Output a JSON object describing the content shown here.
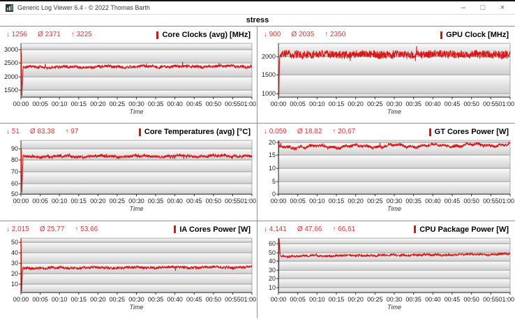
{
  "window": {
    "title": "Generic Log Viewer 6.4 - © 2022 Thomas Barth",
    "controls": {
      "minimize": "–",
      "maximize": "□",
      "close": "×"
    }
  },
  "page_title": "stress",
  "symbols": {
    "min": "↓",
    "avg": "Ø",
    "max": "↑"
  },
  "colors": {
    "line_red": "#dc1414",
    "stats_red": "#e03535",
    "grid_line": "#9b9b9b",
    "axis_line": "#2f2f2f",
    "plot_frame": "#ababab",
    "band_top": "#fbfbfb",
    "band_bottom": "#cfcfcf",
    "panel_divider": "#8f8f8f"
  },
  "time_axis": {
    "label": "Time",
    "ticks": [
      "00:00",
      "00:05",
      "00:10",
      "00:15",
      "00:20",
      "00:25",
      "00:30",
      "00:35",
      "00:40",
      "00:45",
      "00:50",
      "00:55",
      "01:00"
    ]
  },
  "chart_data": [
    {
      "type": "line",
      "title": "Core Clocks (avg) [MHz]",
      "stats": {
        "min": "1256",
        "avg": "2371",
        "max": "3225"
      },
      "y_ticks": [
        1500,
        2000,
        2500,
        3000
      ],
      "y_range": [
        1256,
        3225
      ],
      "x_range_minutes": [
        0,
        60
      ],
      "xlabel": "Time",
      "series": {
        "name": "Core Clocks (avg)",
        "intro_points": [
          [
            0,
            2400
          ],
          [
            0.0015,
            3225
          ],
          [
            0.004,
            1256
          ],
          [
            0.009,
            2300
          ]
        ],
        "steady": {
          "base_start": 2355,
          "base_end": 2390,
          "wander": 35,
          "noise": 50,
          "spike_p": 0.02,
          "spike_amp": 130
        },
        "seed": 101
      }
    },
    {
      "type": "line",
      "title": "GPU Clock [MHz]",
      "stats": {
        "min": "900",
        "avg": "2035",
        "max": "2350"
      },
      "y_ticks": [
        1000,
        1500,
        2000
      ],
      "y_range": [
        900,
        2350
      ],
      "x_range_minutes": [
        0,
        60
      ],
      "xlabel": "Time",
      "series": {
        "name": "GPU Clock",
        "intro_points": [
          [
            0,
            2150
          ],
          [
            0.002,
            900
          ],
          [
            0.005,
            2050
          ]
        ],
        "steady": {
          "base_start": 2050,
          "base_end": 2060,
          "wander": 25,
          "noise": 105,
          "spike_p": 0.012,
          "spike_amp": 160
        },
        "seed": 202
      }
    },
    {
      "type": "line",
      "title": "Core Temperatures (avg) [°C]",
      "stats": {
        "min": "51",
        "avg": "83,38",
        "max": "97"
      },
      "y_ticks": [
        50,
        60,
        70,
        80,
        90
      ],
      "y_range": [
        51,
        97
      ],
      "x_range_minutes": [
        0,
        60
      ],
      "xlabel": "Time",
      "series": {
        "name": "Core Temperatures (avg)",
        "intro_points": [
          [
            0,
            75
          ],
          [
            0.0015,
            97
          ],
          [
            0.004,
            51
          ],
          [
            0.009,
            83
          ]
        ],
        "steady": {
          "base_start": 83.1,
          "base_end": 83.8,
          "wander": 0.8,
          "noise": 1.1,
          "spike_p": 0.03,
          "spike_amp": 2.2
        },
        "seed": 303
      }
    },
    {
      "type": "line",
      "title": "GT Cores Power [W]",
      "stats": {
        "min": "0,059",
        "avg": "18,82",
        "max": "20,67"
      },
      "y_ticks": [
        0,
        5,
        10,
        15,
        20
      ],
      "y_range": [
        0.059,
        20.67
      ],
      "x_range_minutes": [
        0,
        60
      ],
      "xlabel": "Time",
      "series": {
        "name": "GT Cores Power",
        "intro_points": [
          [
            0,
            0.059
          ],
          [
            0.002,
            20.67
          ],
          [
            0.005,
            17.2
          ]
        ],
        "steady": {
          "base_start": 18.1,
          "base_end": 19.0,
          "wander": 0.7,
          "noise": 0.55,
          "spike_p": 0.02,
          "spike_amp": 1.2
        },
        "seed": 404
      }
    },
    {
      "type": "line",
      "title": "IA Cores Power [W]",
      "stats": {
        "min": "2,015",
        "avg": "25,77",
        "max": "53,66"
      },
      "y_ticks": [
        10,
        20,
        30,
        40,
        50
      ],
      "y_range": [
        2.015,
        53.66
      ],
      "x_range_minutes": [
        0,
        60
      ],
      "xlabel": "Time",
      "series": {
        "name": "IA Cores Power",
        "intro_points": [
          [
            0,
            30
          ],
          [
            0.001,
            53.66
          ],
          [
            0.003,
            2.015
          ],
          [
            0.007,
            25.2
          ]
        ],
        "steady": {
          "base_start": 25.2,
          "base_end": 26.2,
          "wander": 0.6,
          "noise": 1.15,
          "spike_p": 0.02,
          "spike_amp": 2.5
        },
        "seed": 505
      }
    },
    {
      "type": "line",
      "title": "CPU Package Power [W]",
      "stats": {
        "min": "4,141",
        "avg": "47,66",
        "max": "66,61"
      },
      "y_ticks": [
        10,
        20,
        30,
        40,
        50,
        60
      ],
      "y_range": [
        4.141,
        66.61
      ],
      "x_range_minutes": [
        0,
        60
      ],
      "xlabel": "Time",
      "series": {
        "name": "CPU Package Power",
        "intro_points": [
          [
            0,
            30
          ],
          [
            0.001,
            4.141
          ],
          [
            0.003,
            66.61
          ],
          [
            0.008,
            45.5
          ]
        ],
        "steady": {
          "base_start": 45.9,
          "base_end": 48.3,
          "wander": 0.7,
          "noise": 1.2,
          "spike_p": 0.02,
          "spike_amp": 2.6
        },
        "seed": 606
      }
    }
  ]
}
